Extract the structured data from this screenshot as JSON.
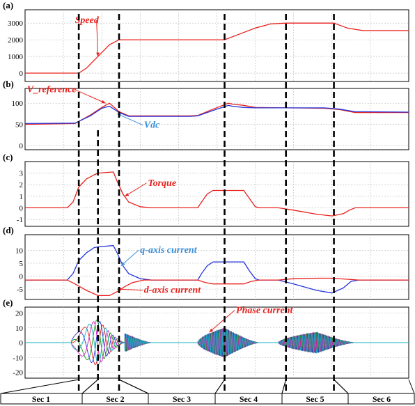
{
  "chart_data": {
    "type": "line",
    "x_domain": [
      0,
      100
    ],
    "colors": {
      "red": "#e8201c",
      "blue": "#2233dd",
      "green": "#1a9a1a",
      "magenta": "#d020c0",
      "cyan": "#10b0c0",
      "light_blue": "#3a8fd8"
    },
    "section_boundaries": [
      14,
      19,
      24.5,
      52,
      68,
      80.5,
      99
    ],
    "sections": [
      "Sec 1",
      "Sec 2",
      "Sec 3",
      "Sec 4",
      "Sec 5",
      "Sec 6"
    ],
    "panels": [
      {
        "label": "(a)",
        "ylim": [
          -500,
          3800
        ],
        "yticks": [
          {
            "v": 3000,
            "t": "3000"
          },
          {
            "v": 2000,
            "t": "2000"
          },
          {
            "v": 1000,
            "t": "1000"
          },
          {
            "v": 0,
            "t": "0"
          }
        ],
        "series": [
          {
            "color": "red",
            "points": [
              [
                0,
                0
              ],
              [
                14,
                0
              ],
              [
                16,
                300
              ],
              [
                19,
                1000
              ],
              [
                22,
                1700
              ],
              [
                24.5,
                2000
              ],
              [
                52,
                2000
              ],
              [
                56,
                2350
              ],
              [
                60,
                2700
              ],
              [
                64,
                2950
              ],
              [
                68,
                3000
              ],
              [
                80.5,
                3000
              ],
              [
                84,
                2700
              ],
              [
                88,
                2550
              ],
              [
                100,
                2550
              ]
            ]
          }
        ],
        "annotations": [
          {
            "text": "Speed",
            "color": "red",
            "tx": 13,
            "ty": 3000,
            "ax": 19,
            "ay": 1000
          }
        ]
      },
      {
        "label": "(b)",
        "ylim": [
          -10,
          135
        ],
        "yticks": [
          {
            "v": 100,
            "t": "100"
          },
          {
            "v": 50,
            "t": "50"
          },
          {
            "v": 0,
            "t": "0"
          }
        ],
        "series": [
          {
            "color": "red",
            "points": [
              [
                0,
                50
              ],
              [
                13,
                52
              ],
              [
                17,
                72
              ],
              [
                20,
                90
              ],
              [
                22,
                100
              ],
              [
                24.5,
                80
              ],
              [
                27,
                70
              ],
              [
                43,
                70
              ],
              [
                45,
                71
              ],
              [
                49,
                86
              ],
              [
                53,
                100
              ],
              [
                54,
                98
              ],
              [
                57,
                95
              ],
              [
                60,
                90
              ],
              [
                78,
                88
              ],
              [
                82,
                85
              ],
              [
                86,
                78
              ],
              [
                100,
                78
              ]
            ]
          },
          {
            "color": "blue",
            "points": [
              [
                0,
                52
              ],
              [
                13,
                53
              ],
              [
                17,
                70
              ],
              [
                20,
                88
              ],
              [
                22,
                93
              ],
              [
                24.5,
                78
              ],
              [
                27,
                69
              ],
              [
                43,
                69
              ],
              [
                45,
                70
              ],
              [
                49,
                83
              ],
              [
                53,
                95
              ],
              [
                54,
                93
              ],
              [
                57,
                90
              ],
              [
                60,
                89
              ],
              [
                78,
                89
              ],
              [
                82,
                86
              ],
              [
                86,
                80
              ],
              [
                100,
                79
              ]
            ]
          }
        ],
        "annotations": [
          {
            "text": "V_reference",
            "color": "red",
            "tx": 0.5,
            "ty": 126,
            "ax": 21,
            "ay": 100
          },
          {
            "text": "Vdc",
            "color": "light_blue",
            "tx": 31,
            "ty": 42,
            "ax": 24,
            "ay": 75
          }
        ]
      },
      {
        "label": "(c)",
        "ylim": [
          -1.6,
          4.0
        ],
        "yticks": [
          {
            "v": 3,
            "t": "3"
          },
          {
            "v": 2,
            "t": "2"
          },
          {
            "v": 1,
            "t": "1"
          },
          {
            "v": 0,
            "t": "0"
          },
          {
            "v": -1,
            "t": "-1"
          }
        ],
        "series": [
          {
            "color": "red",
            "points": [
              [
                0,
                0
              ],
              [
                11,
                0
              ],
              [
                12.5,
                0.5
              ],
              [
                14,
                1.8
              ],
              [
                16,
                2.5
              ],
              [
                18,
                2.85
              ],
              [
                19,
                3.0
              ],
              [
                23,
                3.1
              ],
              [
                24,
                2.3
              ],
              [
                25.5,
                1.2
              ],
              [
                27,
                0.5
              ],
              [
                30,
                0.1
              ],
              [
                33,
                0
              ],
              [
                45,
                0
              ],
              [
                46,
                0.5
              ],
              [
                47.5,
                1.2
              ],
              [
                49,
                1.5
              ],
              [
                57,
                1.5
              ],
              [
                58.5,
                0.8
              ],
              [
                60,
                0.1
              ],
              [
                61,
                0
              ],
              [
                66,
                0
              ],
              [
                70,
                -0.2
              ],
              [
                76,
                -0.55
              ],
              [
                80,
                -0.7
              ],
              [
                83,
                -0.5
              ],
              [
                84.5,
                -0.2
              ],
              [
                86,
                0
              ],
              [
                100,
                0
              ]
            ]
          }
        ],
        "annotations": [
          {
            "text": "Torque",
            "color": "red",
            "tx": 32,
            "ty": 1.9,
            "ax": 26,
            "ay": 1.0
          }
        ]
      },
      {
        "label": "(d)",
        "ylim": [
          -9,
          16
        ],
        "yticks": [
          {
            "v": 10,
            "t": "10"
          },
          {
            "v": 5,
            "t": "5"
          },
          {
            "v": 0,
            "t": "0"
          },
          {
            "v": -5,
            "t": "-5"
          }
        ],
        "series": [
          {
            "color": "blue",
            "points": [
              [
                0,
                -1.5
              ],
              [
                11,
                -1.5
              ],
              [
                12.5,
                1
              ],
              [
                14,
                6
              ],
              [
                16,
                9
              ],
              [
                18,
                11
              ],
              [
                19,
                11.3
              ],
              [
                23,
                11.8
              ],
              [
                24,
                9
              ],
              [
                25.5,
                4
              ],
              [
                27,
                1
              ],
              [
                30,
                -1
              ],
              [
                33,
                -1.5
              ],
              [
                45,
                -1.5
              ],
              [
                46,
                1
              ],
              [
                47.5,
                4
              ],
              [
                49,
                5.5
              ],
              [
                57,
                5.5
              ],
              [
                58.5,
                2
              ],
              [
                60,
                -1
              ],
              [
                61,
                -1.5
              ],
              [
                66,
                -1.5
              ],
              [
                70,
                -3
              ],
              [
                76,
                -5.5
              ],
              [
                80,
                -6.5
              ],
              [
                83,
                -4.5
              ],
              [
                85,
                -2
              ],
              [
                87,
                -1.5
              ],
              [
                100,
                -1.5
              ]
            ]
          },
          {
            "color": "red",
            "points": [
              [
                0,
                -1.5
              ],
              [
                11,
                -1.5
              ],
              [
                13,
                -3
              ],
              [
                16,
                -5.5
              ],
              [
                19,
                -7.5
              ],
              [
                22,
                -7.5
              ],
              [
                24,
                -6
              ],
              [
                26,
                -4
              ],
              [
                28,
                -2.5
              ],
              [
                31,
                -1.5
              ],
              [
                45,
                -1.5
              ],
              [
                47,
                -2.5
              ],
              [
                49,
                -3
              ],
              [
                57,
                -3
              ],
              [
                59,
                -2
              ],
              [
                61,
                -1.5
              ],
              [
                66,
                -1.5
              ],
              [
                70,
                -1
              ],
              [
                76,
                -0.8
              ],
              [
                80,
                -0.8
              ],
              [
                84,
                -1.2
              ],
              [
                87,
                -1.5
              ],
              [
                100,
                -1.5
              ]
            ]
          }
        ],
        "annotations": [
          {
            "text": "q-axis current",
            "color": "light_blue",
            "tx": 30,
            "ty": 9,
            "ax": 25,
            "ay": 4
          },
          {
            "text": "d-axis current",
            "color": "red",
            "tx": 31,
            "ty": -6.5,
            "ax": 24,
            "ay": -5
          }
        ]
      },
      {
        "label": "(e)",
        "ylim": [
          -24,
          24
        ],
        "yticks": [
          {
            "v": 20,
            "t": "20"
          },
          {
            "v": 10,
            "t": "10"
          },
          {
            "v": 0,
            "t": "0"
          },
          {
            "v": -10,
            "t": "-10"
          },
          {
            "v": -20,
            "t": "-20"
          }
        ],
        "phase_bursts": [
          {
            "x0": 12,
            "x1": 26,
            "amp": 16,
            "peak": 19,
            "cycles": 3.2,
            "chirp": 1.8
          },
          {
            "x0": 26,
            "x1": 33,
            "amp": 6,
            "peak": 26,
            "cycles": 14,
            "chirp": 1.2
          },
          {
            "x0": 45,
            "x1": 61,
            "amp": 10,
            "peak": 52,
            "cycles": 24,
            "chirp": 1.0
          },
          {
            "x0": 66,
            "x1": 86,
            "amp": 7,
            "peak": 76,
            "cycles": 24,
            "chirp": 1.0
          }
        ],
        "phase_colors": [
          "red",
          "blue",
          "green",
          "magenta",
          "cyan"
        ],
        "annotations": [
          {
            "text": "Phase current",
            "color": "red",
            "tx": 55,
            "ty": 20,
            "ax": 48,
            "ay": 7
          }
        ]
      }
    ]
  }
}
